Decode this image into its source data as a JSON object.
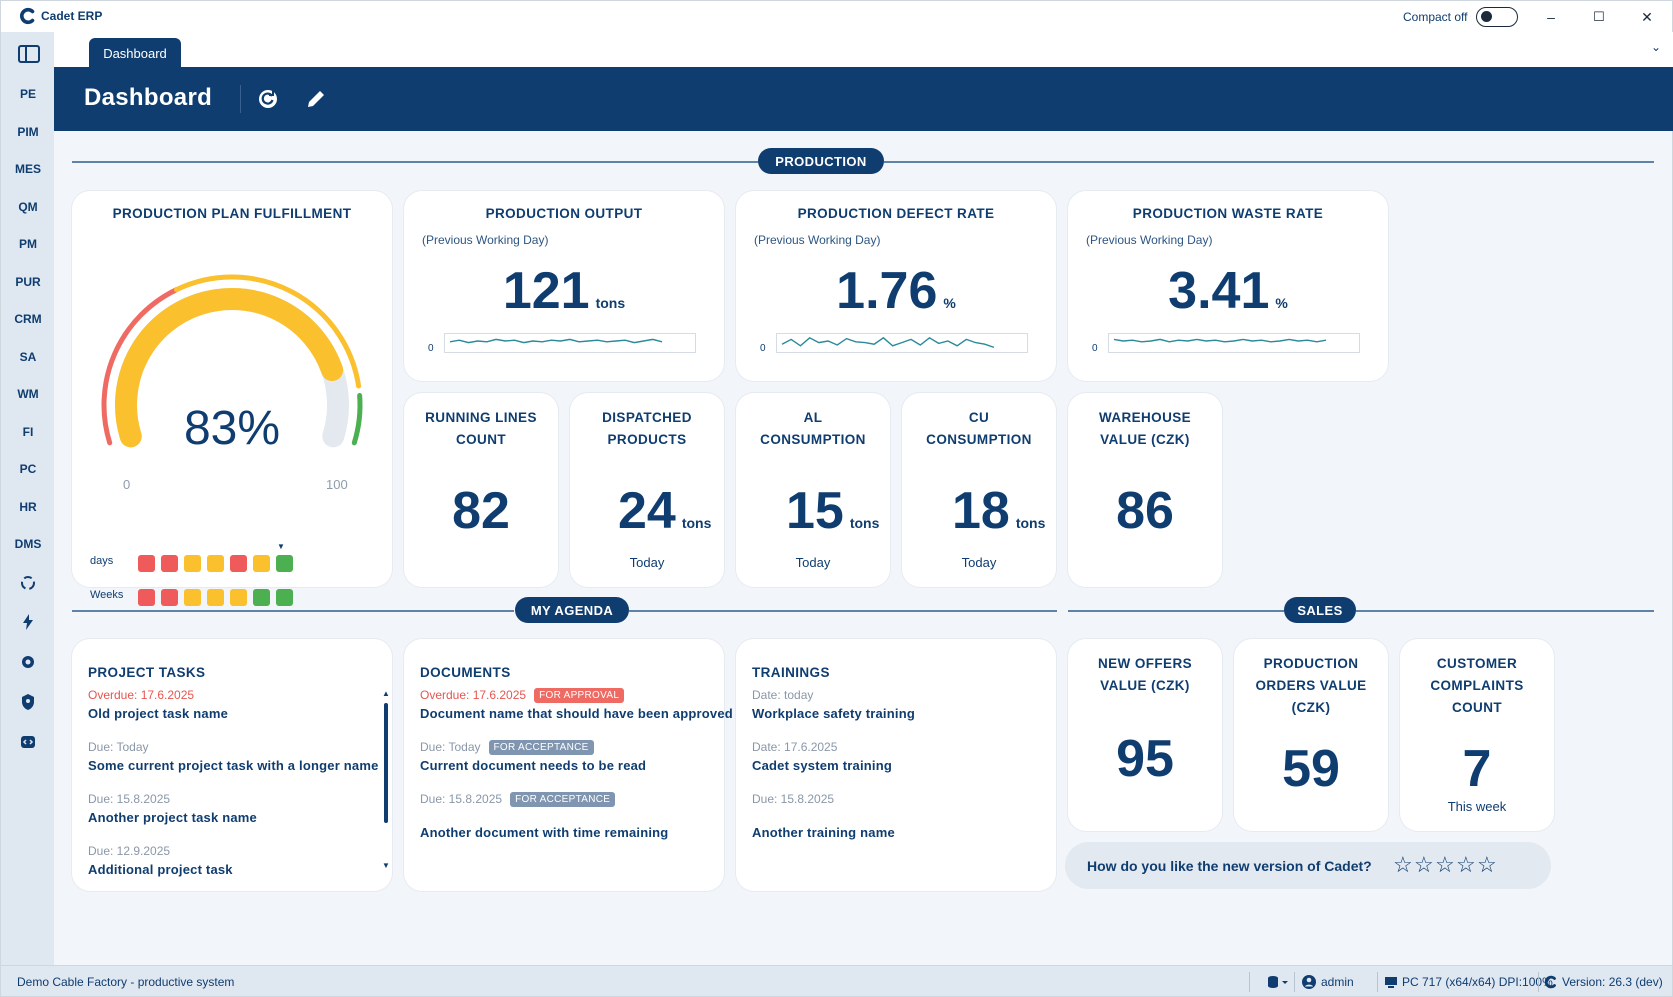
{
  "app": {
    "title": "Cadet ERP",
    "compact_label": "Compact off",
    "compact_on": false
  },
  "window_controls": {
    "minimize": "–",
    "maximize": "☐",
    "close": "✕"
  },
  "sidebar": {
    "items": [
      "PE",
      "PIM",
      "MES",
      "QM",
      "PM",
      "PUR",
      "CRM",
      "SA",
      "WM",
      "FI",
      "PC",
      "HR",
      "DMS"
    ],
    "icons": [
      "recycle-icon",
      "bolt-icon",
      "gear-icon",
      "shield-user-icon",
      "code-icon"
    ]
  },
  "tabs": {
    "active": "Dashboard",
    "chevron": "⌄"
  },
  "header": {
    "title": "Dashboard"
  },
  "sections": {
    "production": "PRODUCTION",
    "agenda": "MY AGENDA",
    "sales": "SALES"
  },
  "plan": {
    "title": "PRODUCTION PLAN FULFILLMENT",
    "percent": "83%",
    "percent_value": 83,
    "min": "0",
    "max": "100",
    "days_label": "days",
    "weeks_label": "Weeks",
    "marker": "▼",
    "days": [
      "red",
      "red",
      "yellow",
      "yellow",
      "red",
      "yellow",
      "green"
    ],
    "weeks": [
      "red",
      "red",
      "yellow",
      "yellow",
      "yellow",
      "green",
      "green"
    ],
    "colors": {
      "red": "#ef5a5a",
      "yellow": "#fbc02d",
      "green": "#4caf50"
    }
  },
  "kpis": {
    "output": {
      "title": "PRODUCTION OUTPUT",
      "sub": "(Previous Working Day)",
      "value": "121",
      "unit": "tons",
      "axis": "0"
    },
    "defect": {
      "title": "PRODUCTION DEFECT RATE",
      "sub": "(Previous Working Day)",
      "value": "1.76",
      "unit": "%",
      "axis": "0"
    },
    "waste": {
      "title": "PRODUCTION WASTE RATE",
      "sub": "(Previous Working Day)",
      "value": "3.41",
      "unit": "%",
      "axis": "0"
    },
    "lines": {
      "title1": "RUNNING LINES",
      "title2": "COUNT",
      "value": "82"
    },
    "dispatched": {
      "title1": "DISPATCHED",
      "title2": "PRODUCTS",
      "value": "24",
      "unit": "tons",
      "caption": "Today"
    },
    "al": {
      "title1": "AL",
      "title2": "CONSUMPTION",
      "value": "15",
      "unit": "tons",
      "caption": "Today"
    },
    "cu": {
      "title1": "CU",
      "title2": "CONSUMPTION",
      "value": "18",
      "unit": "tons",
      "caption": "Today"
    },
    "warehouse": {
      "title1": "WAREHOUSE",
      "title2": "VALUE (CZK)",
      "value": "86"
    }
  },
  "agenda": {
    "project": {
      "title": "PROJECT TASKS",
      "items": [
        {
          "meta": "Overdue: 17.6.2025",
          "name": "Old project task name"
        },
        {
          "meta": "Due: Today",
          "name": "Some current project task with a longer name"
        },
        {
          "meta": "Due: 15.8.2025",
          "name": "Another project task name"
        },
        {
          "meta": "Due: 12.9.2025",
          "name": "Additional project task"
        }
      ]
    },
    "documents": {
      "title": "DOCUMENTS",
      "items": [
        {
          "meta": "Overdue: 17.6.2025",
          "badge": "FOR APPROVAL",
          "name": "Document name that should have been approved"
        },
        {
          "meta": "Due: Today",
          "badge": "FOR ACCEPTANCE",
          "name": "Current document needs to be read"
        },
        {
          "meta": "Due: 15.8.2025",
          "badge": "FOR ACCEPTANCE",
          "name": "Another document with time remaining"
        }
      ]
    },
    "trainings": {
      "title": "TRAININGS",
      "items": [
        {
          "meta": "Date: today",
          "name": "Workplace safety training"
        },
        {
          "meta": "Date: 17.6.2025",
          "name": "Cadet system training"
        },
        {
          "meta": "Due: 15.8.2025",
          "name": "Another training name"
        }
      ]
    }
  },
  "sales": {
    "offers": {
      "title1": "NEW OFFERS",
      "title2": "VALUE (CZK)",
      "value": "95"
    },
    "orders": {
      "title1": "PRODUCTION",
      "title2": "ORDERS VALUE",
      "title3": "(CZK)",
      "value": "59"
    },
    "complaints": {
      "title1": "CUSTOMER",
      "title2": "COMPLAINTS",
      "title3": "COUNT",
      "value": "7",
      "caption": "This week"
    }
  },
  "feedback": {
    "question": "How do you like the new version of Cadet?",
    "stars": [
      "☆",
      "☆",
      "☆",
      "☆",
      "☆"
    ],
    "rating": 0
  },
  "status": {
    "system": "Demo Cable Factory - productive system",
    "user": "admin",
    "pc": "PC 717 (x64/x64) DPI:100%",
    "version": "Version: 26.3 (dev)"
  },
  "colors": {
    "navy": "#0f3d70",
    "overdue": "#e5564f",
    "badge_red": "#ef6a62",
    "badge_grey": "#7f95b0",
    "spark": "#2a8a9a"
  }
}
